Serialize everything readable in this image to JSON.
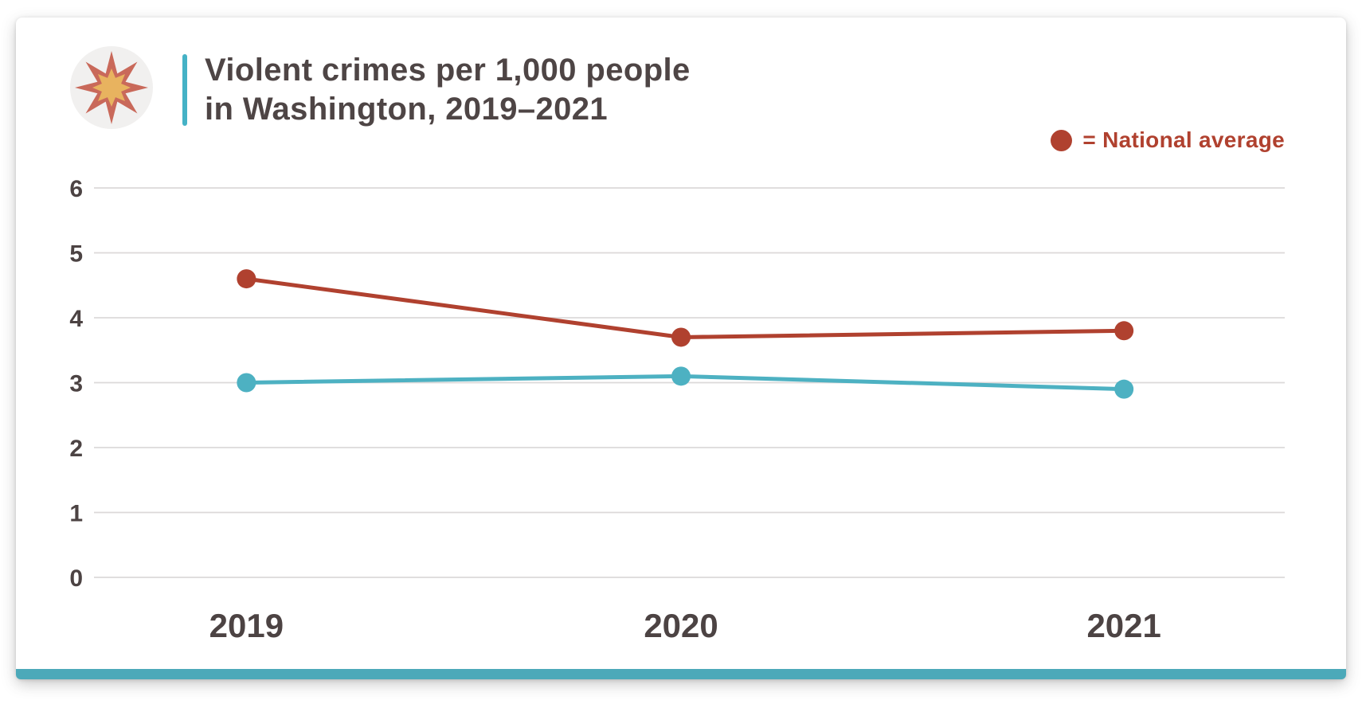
{
  "header": {
    "title_line1": "Violent crimes per 1,000 people",
    "title_line2": "in Washington, 2019–2021"
  },
  "legend": {
    "label": "= National average"
  },
  "icons": {
    "header_badge": "starburst-icon",
    "legend_marker": "legend-dot-icon"
  },
  "colors": {
    "red": "#b0412f",
    "teal": "#4db1c2",
    "accent-teal": "#45b2c6",
    "bar-teal": "#4ca9b9",
    "title-color": "#4e4545",
    "axis-label": "#4c4343",
    "gridline": "#dbd9d9",
    "icon-circle": "#f1f0ef",
    "icon-star-red": "#c9695a",
    "icon-star-yellow": "#e8b35f"
  },
  "chart_data": {
    "type": "line",
    "title": "Violent crimes per 1,000 people in Washington, 2019–2021",
    "categories": [
      "2019",
      "2020",
      "2021"
    ],
    "series": [
      {
        "name": "National average",
        "color": "#b0412f",
        "values": [
          4.6,
          3.7,
          3.8
        ]
      },
      {
        "name": "Washington",
        "color": "#4db1c2",
        "values": [
          3.0,
          3.1,
          2.9
        ]
      }
    ],
    "xlabel": "",
    "ylabel": "",
    "ylim": [
      0,
      6
    ],
    "yticks": [
      0,
      1,
      2,
      3,
      4,
      5,
      6
    ],
    "grid": true,
    "legend_position": "top-right"
  }
}
